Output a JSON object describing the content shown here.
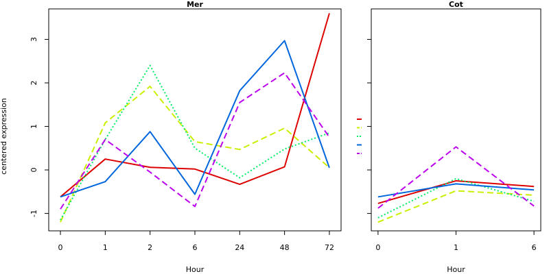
{
  "ylabel": "centered expression",
  "chart_data": [
    {
      "type": "line",
      "title": "Mer",
      "xlabel": "Hour",
      "ylabel": "centered expression",
      "categories": [
        "0",
        "1",
        "2",
        "6",
        "24",
        "48",
        "72"
      ],
      "yticks": [
        -1,
        0,
        1,
        2,
        3
      ],
      "ylim": [
        -1.4,
        3.7
      ],
      "grid": false,
      "series": [
        {
          "color": "#dd0000",
          "dash": "solid",
          "values": [
            -0.62,
            0.25,
            0.06,
            0.02,
            -0.33,
            0.07,
            3.6
          ]
        },
        {
          "color": "#ccee00",
          "dash": "dashed",
          "values": [
            -1.2,
            1.08,
            1.92,
            0.65,
            0.47,
            0.96,
            0.05
          ]
        },
        {
          "color": "#00ee66",
          "dash": "dotted",
          "values": [
            -1.15,
            0.7,
            2.4,
            0.5,
            -0.18,
            0.48,
            0.85
          ]
        },
        {
          "color": "#0066dd",
          "dash": "solid",
          "values": [
            -0.62,
            -0.27,
            0.88,
            -0.56,
            1.82,
            2.97,
            0.05
          ]
        },
        {
          "color": "#bb00ee",
          "dash": "dashed",
          "values": [
            -0.9,
            0.7,
            -0.05,
            -0.84,
            1.55,
            2.23,
            0.75
          ]
        }
      ]
    },
    {
      "type": "line",
      "title": "Cot",
      "xlabel": "Hour",
      "categories": [
        "0",
        "1",
        "6"
      ],
      "yticks": [
        -1,
        0,
        1,
        2,
        3
      ],
      "ylim": [
        -1.4,
        3.7
      ],
      "grid": false,
      "series": [
        {
          "color": "#dd0000",
          "dash": "solid",
          "values": [
            -0.77,
            -0.25,
            -0.38
          ]
        },
        {
          "color": "#ccee00",
          "dash": "dashed",
          "values": [
            -1.2,
            -0.48,
            -0.58
          ]
        },
        {
          "color": "#00ee66",
          "dash": "dotted",
          "values": [
            -1.1,
            -0.2,
            -0.72
          ]
        },
        {
          "color": "#0066dd",
          "dash": "solid",
          "values": [
            -0.62,
            -0.32,
            -0.46
          ]
        },
        {
          "color": "#bb00ee",
          "dash": "dashed",
          "values": [
            -0.88,
            0.53,
            -0.83
          ]
        }
      ]
    }
  ],
  "legend": {
    "placement": "between-panels",
    "entries": [
      {
        "color": "#dd0000",
        "dash": "solid"
      },
      {
        "color": "#ccee00",
        "dash": "dashed"
      },
      {
        "color": "#00ee66",
        "dash": "dotted"
      },
      {
        "color": "#0066dd",
        "dash": "solid"
      },
      {
        "color": "#bb00ee",
        "dash": "dashed"
      }
    ]
  }
}
